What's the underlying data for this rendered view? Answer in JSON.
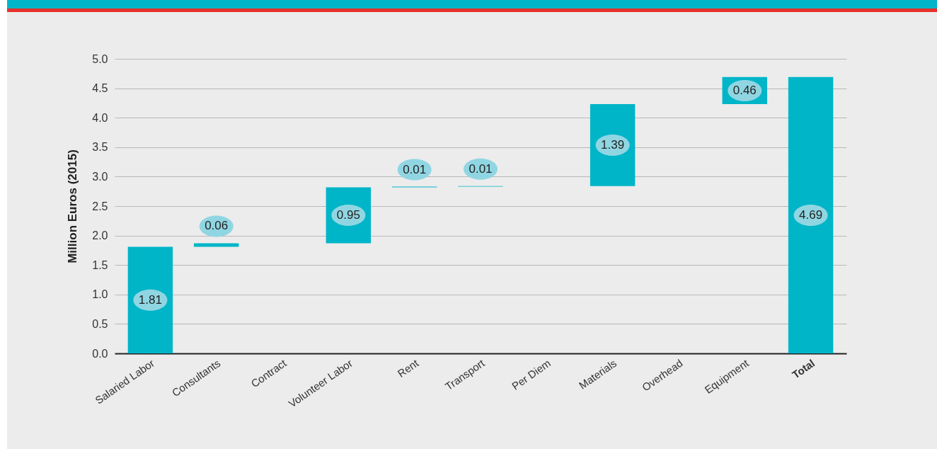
{
  "chart_data": {
    "type": "bar",
    "ylabel": "Million Euros (2015)",
    "categories": [
      "Salaried Labor",
      "Consultants",
      "Contract",
      "Volunteer Labor",
      "Rent",
      "Transport",
      "Per Diem",
      "Materials",
      "Overhead",
      "Equipment",
      "Total"
    ],
    "values": [
      1.81,
      0.06,
      null,
      0.95,
      0.01,
      0.01,
      null,
      1.39,
      null,
      0.46,
      4.69
    ],
    "base": [
      0,
      1.81,
      null,
      1.87,
      2.82,
      2.83,
      null,
      2.84,
      null,
      4.23,
      0
    ],
    "color": "#00b5c8",
    "data_labels": true,
    "ylim": [
      0,
      5
    ],
    "yticks": [
      {
        "value": 0,
        "label": "0.0"
      },
      {
        "value": 0.5,
        "label": "0.5"
      },
      {
        "value": 1,
        "label": "1.0"
      },
      {
        "value": 1.5,
        "label": "1.5"
      },
      {
        "value": 2,
        "label": "2.0"
      },
      {
        "value": 2.5,
        "label": "2.5"
      },
      {
        "value": 3,
        "label": "3.0"
      },
      {
        "value": 3.5,
        "label": "3.5"
      },
      {
        "value": 4,
        "label": "4.0"
      },
      {
        "value": 4.5,
        "label": "4.5"
      },
      {
        "value": 5,
        "label": "5.0"
      }
    ],
    "grid": "y"
  }
}
